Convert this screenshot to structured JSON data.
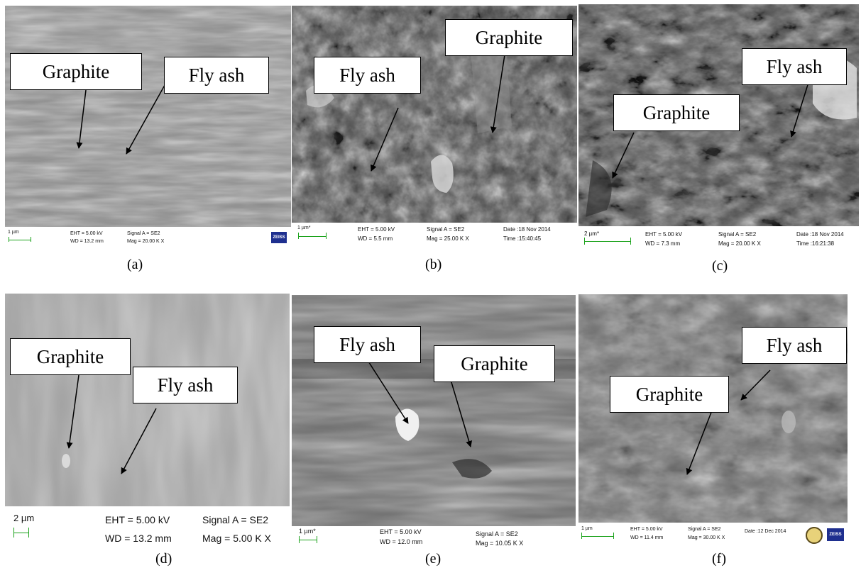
{
  "panels": [
    {
      "caption": "(a)",
      "labels": {
        "graphite": "Graphite",
        "fly_ash": "Fly ash"
      },
      "info": {
        "scale": "1 µm",
        "eht": "EHT = 5.00 kV",
        "wd": "WD = 13.2 mm",
        "signal": "Signal A = SE2",
        "mag": "Mag = 20.00 K X",
        "logo": "ZEISS"
      }
    },
    {
      "caption": "(b)",
      "labels": {
        "graphite": "Graphite",
        "fly_ash": "Fly ash"
      },
      "info": {
        "scale": "1 µm*",
        "eht": "EHT = 5.00 kV",
        "wd": "WD = 5.5 mm",
        "signal": "Signal A = SE2",
        "mag": "Mag = 25.00 K X",
        "date": "Date :18 Nov 2014",
        "time": "Time :15:40:45"
      }
    },
    {
      "caption": "(c)",
      "labels": {
        "graphite": "Graphite",
        "fly_ash": "Fly ash"
      },
      "info": {
        "scale": "2 µm*",
        "eht": "EHT = 5.00 kV",
        "wd": "WD = 7.3 mm",
        "signal": "Signal A = SE2",
        "mag": "Mag = 20.00 K X",
        "date": "Date :18 Nov 2014",
        "time": "Time :16:21:38"
      }
    },
    {
      "caption": "(d)",
      "labels": {
        "graphite": "Graphite",
        "fly_ash": "Fly ash"
      },
      "info": {
        "scale": "2 µm",
        "eht": "EHT = 5.00 kV",
        "wd": "WD = 13.2 mm",
        "signal": "Signal A = SE2",
        "mag": "Mag = 5.00 K X"
      }
    },
    {
      "caption": "(e)",
      "labels": {
        "graphite": "Graphite",
        "fly_ash": "Fly ash"
      },
      "info": {
        "scale": "1 µm*",
        "eht": "EHT = 5.00 kV",
        "wd": "WD = 12.0 mm",
        "signal": "Signal A = SE2",
        "mag": "Mag = 10.05 K X"
      }
    },
    {
      "caption": "(f)",
      "labels": {
        "graphite": "Graphite",
        "fly_ash": "Fly ash"
      },
      "info": {
        "scale": "1 µm",
        "eht": "EHT = 5.00 kV",
        "wd": "WD = 11.4 mm",
        "signal": "Signal A = SE2",
        "mag": "Mag = 30.00 K X",
        "date": "Date :12 Dec 2014",
        "logo": "ZEISS"
      }
    }
  ]
}
